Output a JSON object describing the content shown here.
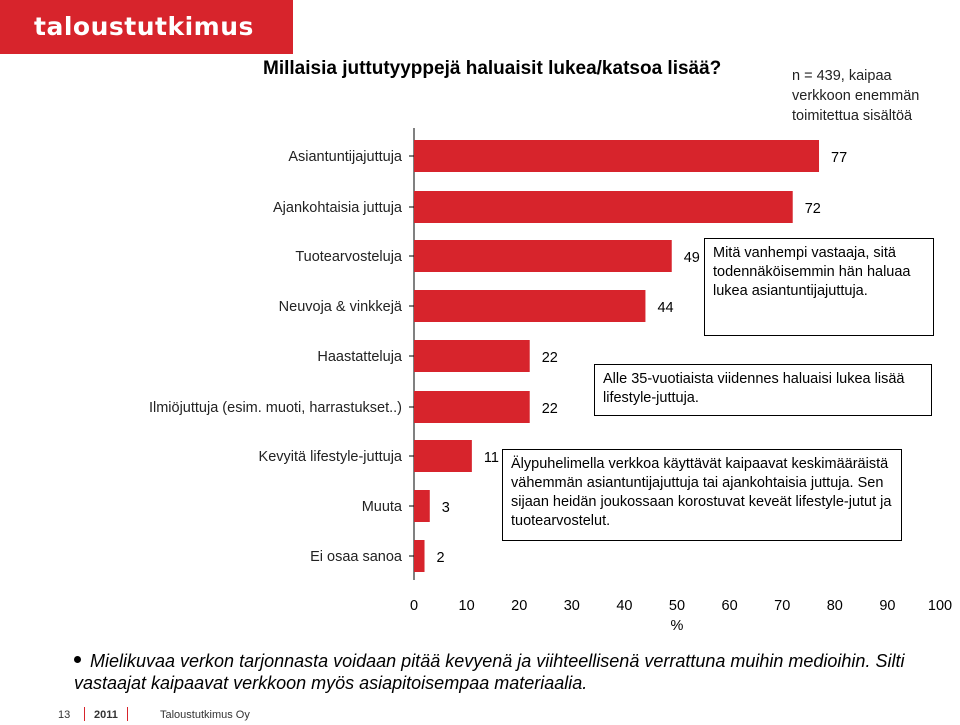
{
  "brand": {
    "logo_text": "taloustutkimus oy",
    "brand_color": "#d7242c"
  },
  "title": "Millaisia juttutyyppejä haluaisit lukea/katsoa lisää?",
  "sample_note": [
    "n = 439, kaipaa",
    "verkkoon enemmän",
    "toimitettua sisältöä"
  ],
  "chart_data": {
    "type": "bar",
    "orientation": "horizontal",
    "categories": [
      "Asiantuntijajuttuja",
      "Ajankohtaisia juttuja",
      "Tuotearvosteluja",
      "Neuvoja & vinkkejä",
      "Haastatteluja",
      "Ilmiöjuttuja (esim. muoti, harrastukset..)",
      "Kevyitä lifestyle-juttuja",
      "Muuta",
      "Ei osaa sanoa"
    ],
    "values": [
      77,
      72,
      49,
      44,
      22,
      22,
      11,
      3,
      2
    ],
    "bar_color": "#d7242c",
    "xlim": [
      0,
      100
    ],
    "xticks": [
      "0",
      "10",
      "20",
      "30",
      "40",
      "50",
      "60",
      "70",
      "80",
      "90",
      "100"
    ],
    "xlabel": "%",
    "grid": false,
    "annotations": [
      "Mitä vanhempi vastaaja, sitä todennäköisemmin hän haluaa lukea asiantuntijajuttuja.",
      "Alle 35-vuotiaista viidennes haluaisi lukea lisää lifestyle-juttuja.",
      "Älypuhelimella verkkoa käyttävät kaipaavat keskimääräistä vähemmän asiantuntijajuttuja tai ajankohtaisia juttuja. Sen sijaan heidän joukossaan korostuvat keveät lifestyle-jutut ja tuotearvostelut."
    ]
  },
  "summary": "Mielikuvaa verkon tarjonnasta voidaan pitää kevyenä ja viihteellisenä verrattuna muihin medioihin. Silti vastaajat kaipaavat verkkoon myös asiapitoisempaa materiaalia.",
  "footer": {
    "page": "13",
    "year": "2011",
    "company": "Taloustutkimus Oy"
  }
}
